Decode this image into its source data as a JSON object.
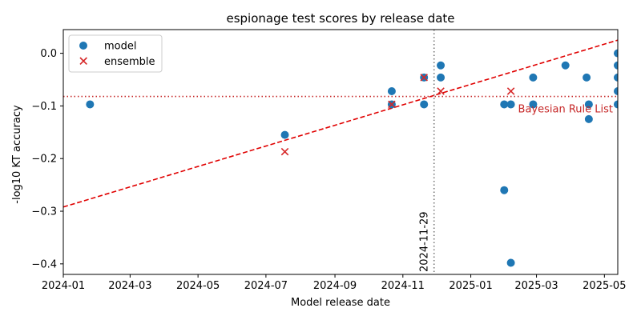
{
  "chart_data": {
    "type": "scatter",
    "title": "espionage test scores by release date",
    "xlabel": "Model release date",
    "ylabel": "-log10 KT accuracy",
    "xlim": [
      "2024-01-01",
      "2025-05-13"
    ],
    "ylim": [
      -0.42,
      0.045
    ],
    "x_ticks": [
      "2024-01",
      "2024-03",
      "2024-05",
      "2024-07",
      "2024-09",
      "2024-11",
      "2025-01",
      "2025-03",
      "2025-05"
    ],
    "y_ticks": [
      -0.4,
      -0.3,
      -0.2,
      -0.1,
      0.0
    ],
    "y_tick_labels": [
      "−0.4",
      "−0.3",
      "−0.2",
      "−0.1",
      "0.0"
    ],
    "legend": {
      "placement": "upper-left",
      "entries": [
        "model",
        "ensemble"
      ]
    },
    "series": [
      {
        "name": "model",
        "marker": "circle",
        "color": "#1f77b4",
        "points": [
          {
            "x": "2024-01-25",
            "y": -0.097
          },
          {
            "x": "2024-07-18",
            "y": -0.155
          },
          {
            "x": "2024-10-22",
            "y": -0.072
          },
          {
            "x": "2024-10-22",
            "y": -0.097
          },
          {
            "x": "2024-11-20",
            "y": -0.046
          },
          {
            "x": "2024-11-20",
            "y": -0.097
          },
          {
            "x": "2024-12-05",
            "y": -0.023
          },
          {
            "x": "2024-12-05",
            "y": -0.046
          },
          {
            "x": "2025-01-31",
            "y": -0.097
          },
          {
            "x": "2025-01-31",
            "y": -0.26
          },
          {
            "x": "2025-02-06",
            "y": -0.097
          },
          {
            "x": "2025-02-06",
            "y": -0.398
          },
          {
            "x": "2025-02-26",
            "y": -0.046
          },
          {
            "x": "2025-02-26",
            "y": -0.097
          },
          {
            "x": "2025-03-27",
            "y": -0.023
          },
          {
            "x": "2025-04-15",
            "y": -0.046
          },
          {
            "x": "2025-04-17",
            "y": -0.097
          },
          {
            "x": "2025-04-17",
            "y": -0.125
          },
          {
            "x": "2025-05-13",
            "y": 0.0
          },
          {
            "x": "2025-05-13",
            "y": -0.023
          },
          {
            "x": "2025-05-13",
            "y": -0.046
          },
          {
            "x": "2025-05-13",
            "y": -0.072
          },
          {
            "x": "2025-05-13",
            "y": -0.097
          }
        ]
      },
      {
        "name": "ensemble",
        "marker": "x",
        "color": "#d62728",
        "points": [
          {
            "x": "2024-07-18",
            "y": -0.187
          },
          {
            "x": "2024-10-22",
            "y": -0.097
          },
          {
            "x": "2024-11-20",
            "y": -0.046
          },
          {
            "x": "2024-12-05",
            "y": -0.072
          },
          {
            "x": "2025-02-06",
            "y": -0.072
          }
        ]
      }
    ],
    "trend_line": {
      "style": "dashed",
      "color": "#e00000",
      "from": {
        "x": "2024-01-01",
        "y": -0.292
      },
      "to": {
        "x": "2025-05-13",
        "y": 0.025
      }
    },
    "reference_lines": [
      {
        "orientation": "horizontal",
        "y": -0.082,
        "style": "dotted",
        "color": "#c62828",
        "label": "Bayesian Rule List",
        "label_color": "#c62828"
      },
      {
        "orientation": "vertical",
        "x": "2024-11-29",
        "style": "dotted",
        "color": "#777777",
        "label": "2024-11-29"
      }
    ]
  }
}
